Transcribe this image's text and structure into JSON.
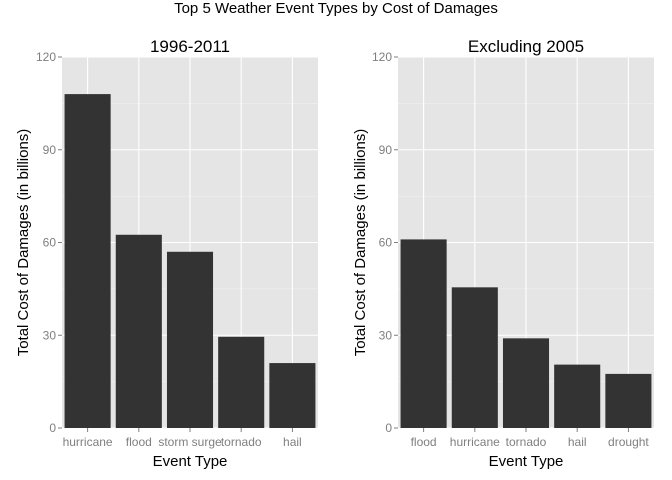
{
  "figure": {
    "title": "Top 5 Weather Event Types by Cost of Damages"
  },
  "colors": {
    "panel_background": "#e5e5e5",
    "bar_fill": "#333333",
    "gridline": "#ffffff",
    "tick_text": "#7f7f7f"
  },
  "chart_data": [
    {
      "type": "bar",
      "title": "1996-2011",
      "xlabel": "Event Type",
      "ylabel": "Total Cost of Damages (in billions)",
      "categories": [
        "hurricane",
        "flood",
        "storm surge",
        "tornado",
        "hail"
      ],
      "values": [
        108,
        62.5,
        57,
        29.5,
        21
      ],
      "ylim": [
        0,
        120
      ],
      "yticks": [
        0,
        30,
        60,
        90,
        120
      ],
      "grid": true,
      "legend": "none"
    },
    {
      "type": "bar",
      "title": "Excluding 2005",
      "xlabel": "Event Type",
      "ylabel": "Total Cost of Damages (in billions)",
      "categories": [
        "flood",
        "hurricane",
        "tornado",
        "hail",
        "drought"
      ],
      "values": [
        61,
        45.5,
        29,
        20.5,
        17.5
      ],
      "ylim": [
        0,
        120
      ],
      "yticks": [
        0,
        30,
        60,
        90,
        120
      ],
      "grid": true,
      "legend": "none"
    }
  ]
}
